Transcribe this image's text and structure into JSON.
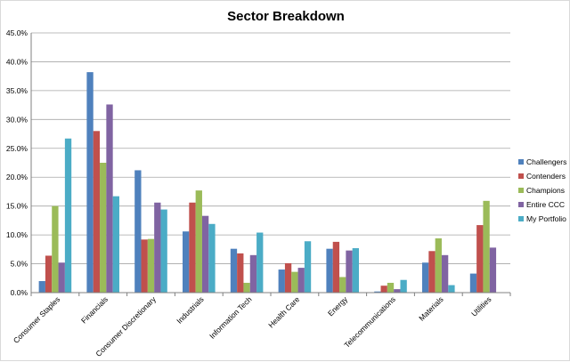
{
  "chart_data": {
    "type": "bar",
    "title": "Sector Breakdown",
    "xlabel": "",
    "ylabel": "",
    "ylim": [
      0,
      45
    ],
    "yticks": [
      "0.0%",
      "5.0%",
      "10.0%",
      "15.0%",
      "20.0%",
      "25.0%",
      "30.0%",
      "35.0%",
      "40.0%",
      "45.0%"
    ],
    "grid": true,
    "legend_position": "right",
    "categories": [
      "Consumer Staples",
      "Financials",
      "Consumer Discretionary",
      "Industrials",
      "Information Tech",
      "Health Care",
      "Energy",
      "Telecommunications",
      "Materials",
      "Utilities"
    ],
    "series": [
      {
        "name": "Challengers",
        "color": "#4F81BD",
        "values": [
          2.0,
          38.2,
          21.2,
          10.6,
          7.6,
          4.0,
          7.6,
          0.2,
          5.2,
          3.3
        ]
      },
      {
        "name": "Contenders",
        "color": "#C0504D",
        "values": [
          6.4,
          28.0,
          9.2,
          15.6,
          6.8,
          5.1,
          8.8,
          1.2,
          7.2,
          11.7
        ]
      },
      {
        "name": "Champions",
        "color": "#9BBB59",
        "values": [
          15.0,
          22.5,
          9.3,
          17.7,
          1.7,
          3.6,
          2.7,
          1.7,
          9.4,
          15.9
        ]
      },
      {
        "name": "Entire CCC",
        "color": "#8064A2",
        "values": [
          5.2,
          32.6,
          15.6,
          13.3,
          6.5,
          4.3,
          7.3,
          0.6,
          6.5,
          7.8
        ]
      },
      {
        "name": "My Portfolio",
        "color": "#4BACC6",
        "values": [
          26.7,
          16.7,
          14.4,
          11.9,
          10.4,
          8.9,
          7.7,
          2.2,
          1.3,
          0.0
        ]
      }
    ]
  }
}
